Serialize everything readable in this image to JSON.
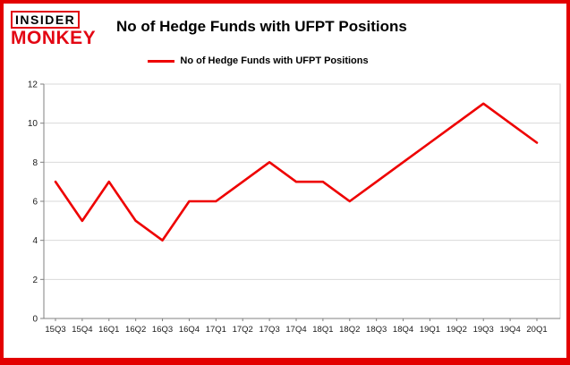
{
  "logo": {
    "line1": "INSIDER",
    "line2": "MONKEY"
  },
  "header": {
    "title": "No of Hedge Funds with UFPT Positions"
  },
  "legend": {
    "label": "No of Hedge Funds with UFPT Positions"
  },
  "colors": {
    "frame_border": "#e30000",
    "logo_red": "#e30613",
    "line_red": "#ee0000",
    "grid": "#d9d9d9",
    "axis": "#808080",
    "label_text": "#1a1a1a"
  },
  "chart_data": {
    "type": "line",
    "title": "No of Hedge Funds with UFPT Positions",
    "categories": [
      "15Q3",
      "15Q4",
      "16Q1",
      "16Q2",
      "16Q3",
      "16Q4",
      "17Q1",
      "17Q2",
      "17Q3",
      "17Q4",
      "18Q1",
      "18Q2",
      "18Q3",
      "18Q4",
      "19Q1",
      "19Q2",
      "19Q3",
      "19Q4",
      "20Q1"
    ],
    "values": [
      7,
      5,
      7,
      5,
      4,
      6,
      6,
      7,
      8,
      7,
      7,
      6,
      7,
      8,
      9,
      10,
      11,
      10,
      9
    ],
    "xlabel": "",
    "ylabel": "",
    "ylim": [
      0,
      12
    ],
    "yticks": [
      0,
      2,
      4,
      6,
      8,
      10,
      12
    ],
    "grid": true,
    "legend_position": "top-center",
    "line_color": "#ee0000"
  }
}
